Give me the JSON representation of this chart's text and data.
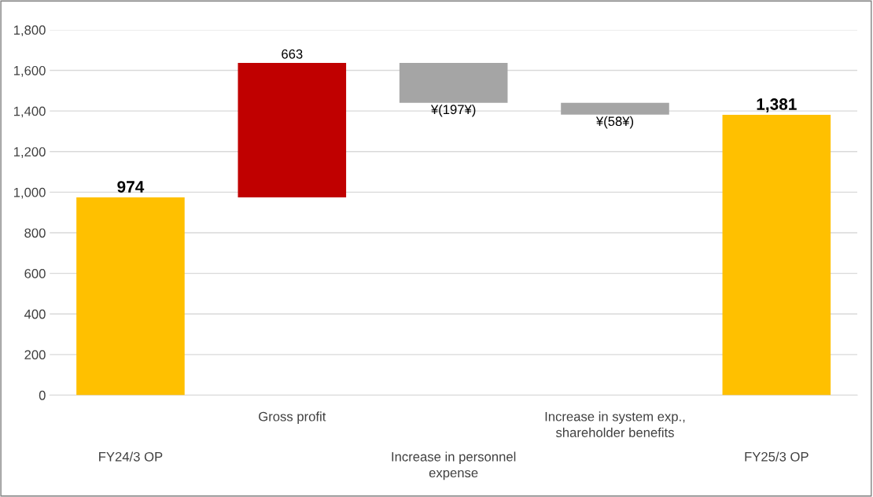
{
  "chart_data": {
    "type": "bar",
    "categories": [
      "FY24/3 OP",
      "Gross profit",
      "Increase in personnel\nexpense",
      "Increase in system exp.,\nshareholder benefits",
      "FY25/3 OP"
    ],
    "values": [
      974,
      663,
      -197,
      -58,
      1381
    ],
    "base": [
      0,
      974,
      1637,
      1440,
      0
    ],
    "colors": [
      "#ffc000",
      "#c00000",
      "#a5a5a5",
      "#a5a5a5",
      "#ffc000"
    ],
    "value_labels": [
      "974",
      "663",
      "¥(197¥)",
      "¥(58¥)",
      "1,381"
    ],
    "ylim": [
      0,
      1800
    ],
    "yticks": [
      0,
      {
        "value": 200,
        "label": "200"
      },
      {
        "value": 400,
        "label": "400"
      },
      {
        "value": 600,
        "label": "600"
      },
      {
        "value": 800,
        "label": "800"
      },
      {
        "value": 1000,
        "label": "1,000"
      },
      {
        "value": 1200,
        "label": "1,200"
      },
      {
        "value": 1400,
        "label": "1,400"
      },
      {
        "value": 1600,
        "label": "1,600"
      },
      {
        "value": 1800,
        "label": "1,800"
      }
    ],
    "grid": "y",
    "legend": false
  }
}
